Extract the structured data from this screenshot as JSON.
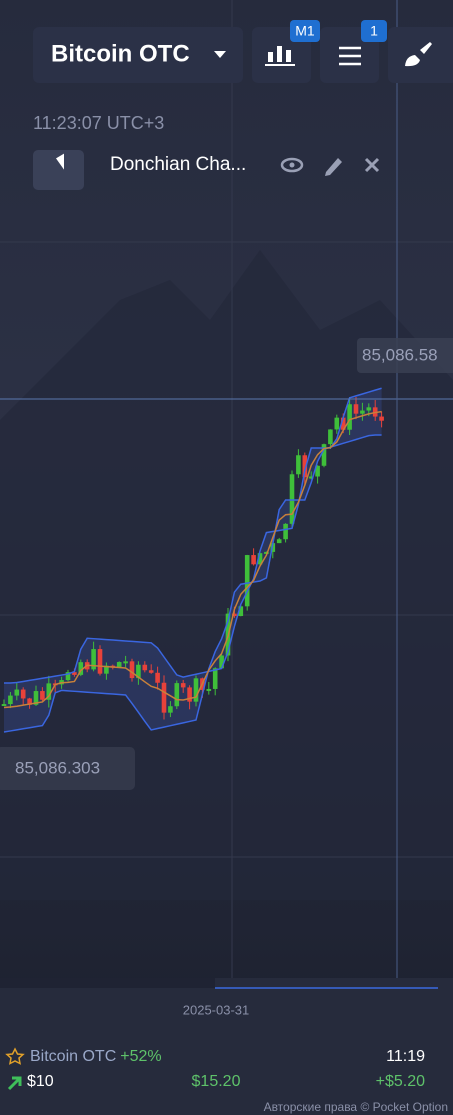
{
  "header": {
    "asset": "Bitcoin OTC",
    "timeframe_badge": "M1",
    "indicator_badge": "1",
    "clock": "11:23:07 UTC+3"
  },
  "indicator": {
    "name": "Donchian Cha..."
  },
  "chart": {
    "current_price": "85,086.58",
    "cursor_price": "85,086.303",
    "date": "2025-03-31"
  },
  "trade": {
    "asset": "Bitcoin OTC",
    "payout": "+52%",
    "time": "11:19",
    "stake": "$10",
    "return": "$15.20",
    "profit": "+$5.20"
  },
  "footer": {
    "copyright": "Авторские права © Pocket Option"
  }
}
